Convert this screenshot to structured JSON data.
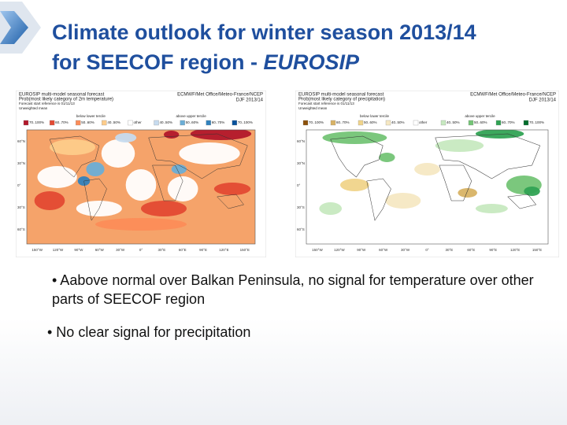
{
  "title": {
    "line1": "Climate outlook for winter season 2013/14",
    "line2": "for SEECOF region - ",
    "line2_italic": "EUROSIP"
  },
  "maps": [
    {
      "header": [
        "EUROSIP multi-model seasonal forecast",
        "Prob(most likely category of 2m temperature)",
        "Forecast start reference is 01/11/13",
        "Unweighted mean"
      ],
      "right_header": [
        "ECMWF/Met Office/Meteo-France/NCEP",
        "DJF 2013/14"
      ],
      "legend_titles": [
        "below lower tercile",
        "above upper tercile"
      ],
      "legend_labels": [
        "70..100%",
        "60..70%",
        "50..60%",
        "40..50%",
        "other",
        "40..50%",
        "50..60%",
        "60..70%",
        "70..100%"
      ],
      "lat_labels": [
        "60°N",
        "30°N",
        "0°",
        "30°S",
        "60°S"
      ],
      "lon_labels": [
        "150°W",
        "120°W",
        "90°W",
        "60°W",
        "30°W",
        "0°",
        "30°E",
        "60°E",
        "90°E",
        "120°E",
        "150°E"
      ]
    },
    {
      "header": [
        "EUROSIP multi-model seasonal forecast",
        "Prob(most likely category of precipitation)",
        "Forecast start reference is 01/11/13",
        "Unweighted mean"
      ],
      "right_header": [
        "ECMWF/Met Office/Meteo-France/NCEP",
        "DJF 2013/14"
      ],
      "legend_titles": [
        "below lower tercile",
        "above upper tercile"
      ],
      "legend_labels": [
        "70..100%",
        "60..70%",
        "50..60%",
        "40..50%",
        "other",
        "40..50%",
        "50..60%",
        "60..70%",
        "70..100%"
      ],
      "lat_labels": [
        "60°N",
        "30°N",
        "0°",
        "30°S",
        "60°S"
      ],
      "lon_labels": [
        "150°W",
        "120°W",
        "90°W",
        "60°W",
        "30°W",
        "0°",
        "30°E",
        "60°E",
        "90°E",
        "120°E",
        "150°E"
      ]
    }
  ],
  "bullets": [
    "• Aabove normal over Balkan Peninsula, no signal for temperature over other parts of SEECOF region",
    "• No clear signal for precipitation"
  ]
}
